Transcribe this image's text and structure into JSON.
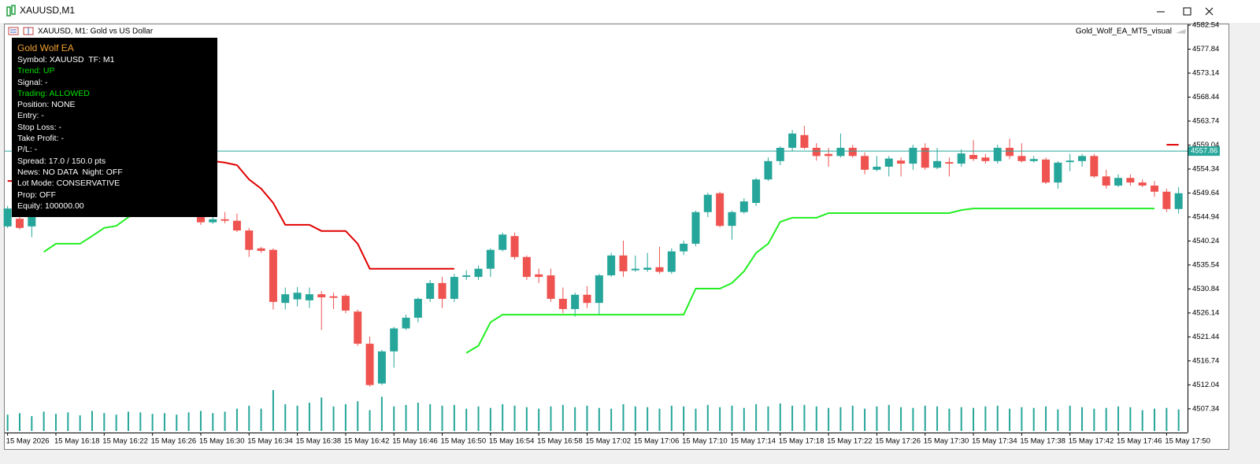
{
  "window": {
    "title": "XAUUSD,M1"
  },
  "info_panel": {
    "title": "Gold Wolf EA",
    "title_color": "#f0a030",
    "lines": [
      {
        "text": "Symbol: XAUUSD  TF: M1",
        "color": "#ffffff"
      },
      {
        "text": "Trend: UP",
        "color": "#00e000"
      },
      {
        "text": "Signal: -",
        "color": "#ffffff"
      },
      {
        "text": "Trading: ALLOWED",
        "color": "#00e000"
      },
      {
        "text": "Position: NONE",
        "color": "#ffffff"
      },
      {
        "text": "Entry: -",
        "color": "#ffffff"
      },
      {
        "text": "Stop Loss: -",
        "color": "#ffffff"
      },
      {
        "text": "Take Profit: -",
        "color": "#ffffff"
      },
      {
        "text": "P/L: -",
        "color": "#ffffff"
      },
      {
        "text": "Spread: 17.0 / 150.0 pts",
        "color": "#ffffff"
      },
      {
        "text": "News: NO DATA  Night: OFF",
        "color": "#ffffff"
      },
      {
        "text": "Lot Mode: CONSERVATIVE",
        "color": "#ffffff"
      },
      {
        "text": "Prop: OFF",
        "color": "#ffffff"
      },
      {
        "text": "Equity: 100000.00",
        "color": "#ffffff"
      }
    ]
  },
  "chart_data": {
    "type": "candlestick",
    "title": "XAUUSD, M1:  Gold vs US Dollar",
    "indicator_label": "Gold_Wolf_EA_MT5_visual",
    "up_color": "#26a69a",
    "down_color": "#ef5350",
    "volume_color": "#26a69a",
    "current_price": 4557.86,
    "current_price_color": "#26a69a",
    "grid": false,
    "ylim": [
      4503.0,
      4582.85
    ],
    "yticks": [
      4582.54,
      4577.84,
      4573.14,
      4568.44,
      4563.74,
      4559.04,
      4554.34,
      4549.64,
      4544.94,
      4540.24,
      4535.54,
      4530.84,
      4526.14,
      4521.44,
      4516.74,
      4512.04,
      4507.34
    ],
    "categories": [
      "15 May 2026",
      null,
      null,
      null,
      "15 May 16:18",
      null,
      null,
      null,
      "15 May 16:22",
      null,
      null,
      null,
      "15 May 16:26",
      null,
      null,
      null,
      "15 May 16:30",
      null,
      null,
      null,
      "15 May 16:34",
      null,
      null,
      null,
      "15 May 16:38",
      null,
      null,
      null,
      "15 May 16:42",
      null,
      null,
      null,
      "15 May 16:46",
      null,
      null,
      null,
      "15 May 16:50",
      null,
      null,
      null,
      "15 May 16:54",
      null,
      null,
      null,
      "15 May 16:58",
      null,
      null,
      null,
      "15 May 17:02",
      null,
      null,
      null,
      "15 May 17:06",
      null,
      null,
      null,
      "15 May 17:10",
      null,
      null,
      null,
      "15 May 17:14",
      null,
      null,
      null,
      "15 May 17:18",
      null,
      null,
      null,
      "15 May 17:22",
      null,
      null,
      null,
      "15 May 17:26",
      null,
      null,
      null,
      "15 May 17:30",
      null,
      null,
      null,
      "15 May 17:34",
      null,
      null,
      null,
      "15 May 17:38",
      null,
      null,
      null,
      "15 May 17:42",
      null,
      null,
      null,
      "15 May 17:46",
      null,
      null,
      null,
      "15 May 17:50",
      null
    ],
    "open": [
      4543.1,
      4544.6,
      4543.1,
      4546.6,
      4547.5,
      4546.8,
      4548.6,
      4549.7,
      4549.2,
      4551.3,
      4550.6,
      4549.8,
      4550.7,
      4549.1,
      4548.0,
      4548.9,
      4546.5,
      4543.9,
      4544.5,
      4544.2,
      4542.3,
      4538.8,
      4538.5,
      4528.1,
      4528.8,
      4528.6,
      4529.8,
      4529.4,
      4529.5,
      4526.4,
      4520.1,
      4512.3,
      4518.6,
      4523.1,
      4525.2,
      4528.9,
      4532.0,
      4528.9,
      4533.2,
      4533.2,
      4534.8,
      4538.5,
      4541.2,
      4537.1,
      4533.7,
      4533.5,
      4528.9,
      4526.9,
      4529.7,
      4528.1,
      4533.5,
      4537.4,
      4534.5,
      4534.6,
      4535.1,
      4534.2,
      4538.2,
      4539.7,
      4545.9,
      4549.6,
      4543.2,
      4545.9,
      4547.7,
      4552.3,
      4555.9,
      4558.5,
      4561.0,
      4558.5,
      4557.3,
      4556.9,
      4558.5,
      4556.9,
      4554.2,
      4554.8,
      4556.0,
      4555.4,
      4558.5,
      4554.6,
      4555.7,
      4555.4,
      4557.1,
      4556.6,
      4555.9,
      4558.5,
      4556.9,
      4555.9,
      4556.2,
      4551.7,
      4555.7,
      4555.9,
      4556.9,
      4552.9,
      4551.1,
      4552.6,
      4551.7,
      4551.1,
      4549.9,
      4546.5
    ],
    "high": [
      4547.1,
      4545.1,
      4547.1,
      4548.0,
      4548.4,
      4549.1,
      4550.2,
      4551.0,
      4551.8,
      4552.4,
      4551.5,
      4551.2,
      4551.6,
      4549.9,
      4549.4,
      4549.6,
      4546.6,
      4545.0,
      4545.9,
      4545.6,
      4542.8,
      4539.1,
      4538.8,
      4531.1,
      4531.2,
      4531.1,
      4530.4,
      4530.1,
      4529.8,
      4526.8,
      4521.5,
      4518.9,
      4523.4,
      4525.8,
      4529.2,
      4532.6,
      4533.2,
      4533.8,
      4534.5,
      4535.4,
      4538.8,
      4541.9,
      4541.9,
      4537.4,
      4534.8,
      4534.8,
      4531.1,
      4530.1,
      4531.4,
      4533.8,
      4537.9,
      4540.3,
      4537.4,
      4537.9,
      4539.1,
      4538.8,
      4540.3,
      4546.2,
      4549.7,
      4549.9,
      4546.2,
      4548.6,
      4552.6,
      4556.6,
      4558.8,
      4562.0,
      4562.8,
      4559.4,
      4558.5,
      4561.3,
      4559.1,
      4557.6,
      4556.9,
      4556.9,
      4556.6,
      4559.1,
      4559.4,
      4558.5,
      4556.6,
      4558.2,
      4560.0,
      4557.3,
      4559.1,
      4560.3,
      4559.4,
      4556.9,
      4556.6,
      4555.9,
      4557.3,
      4557.3,
      4557.3,
      4554.2,
      4553.3,
      4553.3,
      4552.3,
      4552.0,
      4550.5,
      4550.8
    ],
    "low": [
      4542.8,
      4542.5,
      4541.0,
      4545.9,
      4546.2,
      4546.5,
      4548.0,
      4548.9,
      4548.8,
      4550.1,
      4549.3,
      4549.0,
      4548.7,
      4547.6,
      4547.3,
      4546.8,
      4543.4,
      4543.6,
      4543.7,
      4542.0,
      4537.1,
      4537.9,
      4526.8,
      4526.8,
      4527.4,
      4527.1,
      4522.8,
      4526.9,
      4526.1,
      4519.7,
      4511.7,
      4512.0,
      4515.4,
      4522.8,
      4524.3,
      4528.3,
      4527.1,
      4528.3,
      4532.6,
      4532.6,
      4533.2,
      4538.2,
      4536.6,
      4532.6,
      4532.0,
      4528.3,
      4526.1,
      4525.4,
      4527.1,
      4525.8,
      4533.2,
      4533.2,
      4534.2,
      4534.2,
      4533.8,
      4533.8,
      4537.5,
      4539.2,
      4544.9,
      4542.9,
      4540.5,
      4545.6,
      4547.1,
      4552.0,
      4555.1,
      4557.9,
      4558.2,
      4556.0,
      4554.8,
      4556.6,
      4556.6,
      4553.3,
      4553.9,
      4552.9,
      4552.9,
      4554.2,
      4554.2,
      4554.3,
      4552.9,
      4554.8,
      4555.9,
      4555.4,
      4555.4,
      4556.3,
      4555.6,
      4555.6,
      4551.4,
      4550.5,
      4553.9,
      4554.8,
      4552.6,
      4550.5,
      4550.8,
      4551.1,
      4550.8,
      4548.9,
      4545.9,
      4545.6
    ],
    "close": [
      4546.6,
      4542.8,
      4546.6,
      4547.5,
      4546.8,
      4548.6,
      4549.7,
      4549.2,
      4551.3,
      4550.6,
      4549.8,
      4550.7,
      4549.1,
      4548.0,
      4548.9,
      4547.4,
      4543.9,
      4544.5,
      4544.2,
      4542.3,
      4538.5,
      4538.3,
      4528.3,
      4529.8,
      4530.1,
      4529.8,
      4529.2,
      4529.1,
      4526.6,
      4520.1,
      4512.0,
      4518.6,
      4523.1,
      4525.2,
      4528.9,
      4532.0,
      4528.9,
      4533.2,
      4533.5,
      4534.8,
      4538.5,
      4541.5,
      4537.1,
      4533.2,
      4533.2,
      4528.9,
      4526.9,
      4529.7,
      4528.1,
      4533.5,
      4537.4,
      4534.3,
      4534.8,
      4535.0,
      4534.2,
      4538.2,
      4539.7,
      4545.9,
      4549.3,
      4543.2,
      4545.9,
      4548.0,
      4552.3,
      4555.9,
      4558.5,
      4561.3,
      4558.5,
      4556.9,
      4556.9,
      4558.5,
      4556.9,
      4554.2,
      4554.8,
      4556.4,
      4555.4,
      4558.5,
      4554.6,
      4555.9,
      4555.4,
      4557.4,
      4556.3,
      4555.9,
      4558.5,
      4556.9,
      4555.9,
      4556.3,
      4551.7,
      4555.6,
      4556.0,
      4556.9,
      4552.9,
      4551.1,
      4552.6,
      4551.7,
      4551.1,
      4549.9,
      4546.5,
      4549.6
    ],
    "volumes": [
      22,
      24,
      20,
      26,
      23,
      25,
      21,
      27,
      24,
      22,
      26,
      25,
      23,
      24,
      22,
      25,
      27,
      24,
      26,
      30,
      34,
      30,
      55,
      36,
      34,
      38,
      45,
      33,
      36,
      40,
      28,
      46,
      33,
      35,
      38,
      36,
      34,
      35,
      30,
      33,
      31,
      36,
      34,
      32,
      30,
      33,
      35,
      32,
      34,
      31,
      30,
      36,
      33,
      32,
      30,
      34,
      33,
      30,
      35,
      32,
      34,
      31,
      36,
      33,
      37,
      34,
      35,
      33,
      31,
      32,
      34,
      30,
      33,
      35,
      32,
      31,
      34,
      33,
      30,
      32,
      31,
      33,
      34,
      30,
      32,
      31,
      33,
      29,
      34,
      32,
      30,
      31,
      33,
      32,
      28,
      30,
      31,
      29
    ],
    "lines": [
      {
        "color": "#e00000",
        "values": [
          4552.0,
          4552.0,
          4552.0,
          null,
          null,
          null,
          null,
          null,
          null,
          null,
          null,
          null,
          null,
          null,
          null,
          4557.0,
          4556.7,
          4555.9,
          4555.6,
          4555.1,
          4552.3,
          4550.5,
          4547.7,
          4543.4,
          4543.4,
          4543.4,
          4542.2,
          4542.2,
          4542.2,
          4539.7,
          4534.8,
          4534.8,
          4534.8,
          4534.8,
          4534.8,
          4534.8,
          4534.8,
          4534.8,
          null,
          null,
          null,
          null,
          null,
          null,
          null,
          null,
          null,
          null,
          null,
          null,
          null,
          null,
          null,
          null,
          null,
          null,
          null,
          null,
          null,
          null,
          null,
          null,
          null,
          null,
          null,
          null,
          null,
          null,
          null,
          null,
          null,
          null,
          null,
          null,
          null,
          null,
          null,
          null,
          null,
          null,
          null,
          null,
          null,
          null,
          null,
          null,
          null,
          null,
          null,
          null,
          null,
          null,
          null,
          null,
          null,
          null,
          4559.1,
          4559.1
        ]
      },
      {
        "color": "#22ee22",
        "values": [
          null,
          null,
          null,
          4538.1,
          4539.7,
          4539.7,
          4539.7,
          4541.2,
          4542.8,
          4543.2,
          4544.9,
          4546.2,
          4546.8,
          4547.0,
          4547.0,
          null,
          null,
          null,
          null,
          null,
          null,
          null,
          null,
          null,
          null,
          null,
          null,
          null,
          null,
          null,
          null,
          null,
          null,
          null,
          null,
          null,
          null,
          null,
          4518.3,
          4519.7,
          4524.3,
          4525.8,
          4525.8,
          4525.8,
          4525.8,
          4525.8,
          4525.8,
          4525.8,
          4525.8,
          4525.8,
          4525.8,
          4525.8,
          4525.8,
          4525.8,
          4525.8,
          4525.8,
          4525.8,
          4530.9,
          4530.9,
          4530.9,
          4532.0,
          4534.3,
          4537.9,
          4539.7,
          4544.0,
          4544.8,
          4544.8,
          4544.8,
          4545.7,
          4545.7,
          4545.7,
          4545.7,
          4545.7,
          4545.7,
          4545.7,
          4545.7,
          4545.7,
          4545.7,
          4545.7,
          4546.3,
          4546.6,
          4546.6,
          4546.6,
          4546.6,
          4546.6,
          4546.6,
          4546.6,
          4546.6,
          4546.6,
          4546.6,
          4546.6,
          4546.6,
          4546.6,
          4546.6,
          4546.6,
          4546.6,
          null,
          null
        ]
      }
    ]
  }
}
